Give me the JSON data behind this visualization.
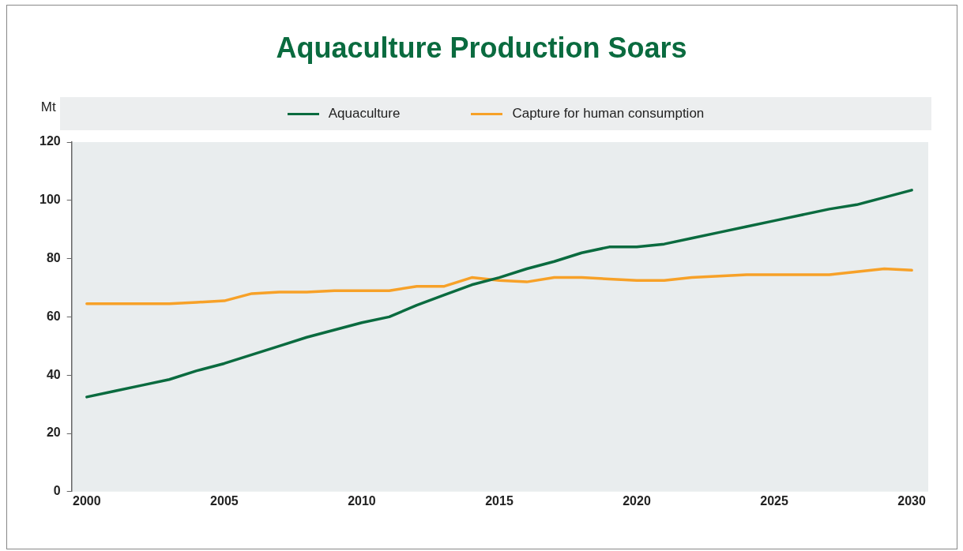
{
  "chart_data": {
    "type": "line",
    "title": "Aquaculture Production Soars",
    "ylabel": "Mt",
    "x": [
      2000,
      2001,
      2002,
      2003,
      2004,
      2005,
      2006,
      2007,
      2008,
      2009,
      2010,
      2011,
      2012,
      2013,
      2014,
      2015,
      2016,
      2017,
      2018,
      2019,
      2020,
      2021,
      2022,
      2023,
      2024,
      2025,
      2026,
      2027,
      2028,
      2029,
      2030
    ],
    "series": [
      {
        "name": "Aquaculture",
        "color": "#0a6b3f",
        "values": [
          32.5,
          34.5,
          36.5,
          38.5,
          41.5,
          44,
          47,
          50,
          53,
          55.5,
          58,
          60,
          64,
          67.5,
          71,
          73.5,
          76.5,
          79,
          82,
          84,
          84,
          85,
          87,
          89,
          91,
          93,
          95,
          97,
          98.5,
          101,
          103.5
        ]
      },
      {
        "name": "Capture for human consumption",
        "color": "#f7a128",
        "values": [
          64.5,
          64.5,
          64.5,
          64.5,
          65,
          65.5,
          68,
          68.5,
          68.5,
          69,
          69,
          69,
          70.5,
          70.5,
          73.5,
          72.5,
          72,
          73.5,
          73.5,
          73,
          72.5,
          72.5,
          73.5,
          74,
          74.5,
          74.5,
          74.5,
          74.5,
          75.5,
          76.5,
          76
        ]
      }
    ],
    "xlim": [
      1999.45,
      2030.6
    ],
    "xticks": [
      2000,
      2005,
      2010,
      2015,
      2020,
      2025,
      2030
    ],
    "ylim": [
      0,
      120
    ],
    "yticks": [
      0,
      20,
      40,
      60,
      80,
      100,
      120
    ],
    "grid": false,
    "legend": "top",
    "marker": "none",
    "line_style": "solid"
  }
}
